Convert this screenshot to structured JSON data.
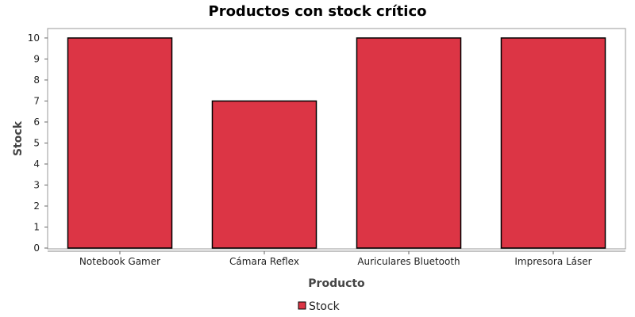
{
  "chart_data": {
    "type": "bar",
    "title": "Productos con stock crítico",
    "xlabel": "Producto",
    "ylabel": "Stock",
    "categories": [
      "Notebook Gamer",
      "Cámara Reflex",
      "Auriculares Bluetooth",
      "Impresora Láser"
    ],
    "series": [
      {
        "name": "Stock",
        "values": [
          10,
          7,
          10,
          10
        ],
        "color": "#dc3545"
      }
    ],
    "ylim": [
      0,
      10.45
    ],
    "yticks": [
      0,
      1,
      2,
      3,
      4,
      5,
      6,
      7,
      8,
      9,
      10
    ],
    "grid": false,
    "legend": "bottom-center"
  }
}
